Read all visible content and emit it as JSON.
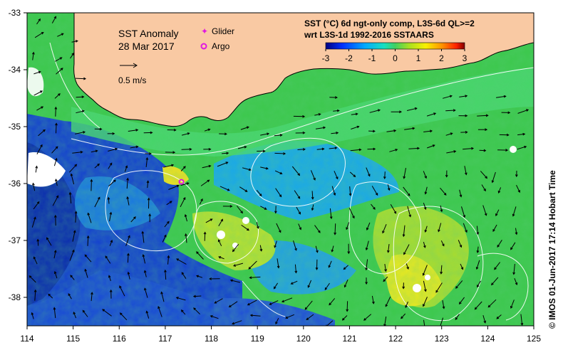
{
  "title": "SST Anomaly",
  "date": "28 Mar 2017",
  "legend": {
    "glider_label": "Glider",
    "argo_label": "Argo"
  },
  "scale_label": "0.5 m/s",
  "product_line1": "SST (°C) 6d ngt-only comp, L3S-6d QL>=2",
  "product_line2": "wrt L3S-1d 1992-2016 SSTAARS",
  "colorbar": {
    "ticks": [
      "-3",
      "-2",
      "-1",
      "0",
      "1",
      "2",
      "3"
    ],
    "min": -3,
    "max": 3
  },
  "credit": "© IMOS 01-Jun-2017 17:14 Hobart Time",
  "axes": {
    "lon_ticks": [
      "114",
      "115",
      "116",
      "117",
      "118",
      "119",
      "120",
      "121",
      "122",
      "123",
      "124",
      "125"
    ],
    "lat_ticks": [
      "-33",
      "-34",
      "-35",
      "-36",
      "-37",
      "-38"
    ],
    "lon_range": [
      114,
      125
    ],
    "lat_range": [
      -33,
      -38.5
    ]
  },
  "markers": {
    "argo": {
      "lon": 117.35,
      "lat": -35.97
    }
  },
  "colors": {
    "land": "#f9c9a3",
    "glider": "#e018e0",
    "argo": "#e018e0"
  }
}
